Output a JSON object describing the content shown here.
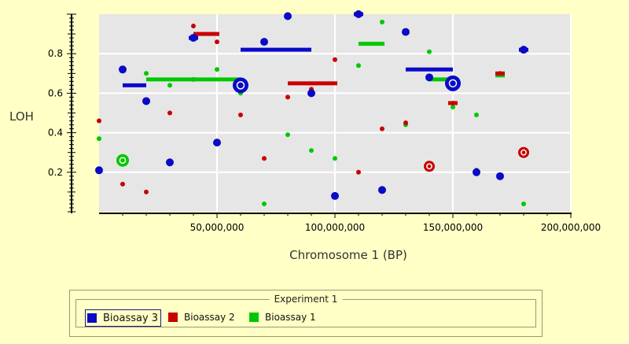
{
  "chart_data": {
    "type": "scatter",
    "xlabel": "Chromosome 1 (BP)",
    "ylabel": "LOH",
    "xlim": [
      0,
      200000000
    ],
    "ylim": [
      0,
      1.0
    ],
    "xticks": [
      50000000,
      100000000,
      150000000,
      200000000
    ],
    "xtick_labels": [
      "50,000,000",
      "100,000,000",
      "150,000,000",
      "200,000,000"
    ],
    "yticks": [
      0.2,
      0.4,
      0.6,
      0.8
    ],
    "ytick_labels": [
      "0.2",
      "0.4",
      "0.6",
      "0.8"
    ],
    "grid": true,
    "plot_background": "#e6e6e6",
    "series": [
      {
        "name": "Bioassay 3",
        "color": "#0a0ac8",
        "points": [
          [
            0,
            0.21
          ],
          [
            10000000,
            0.72
          ],
          [
            20000000,
            0.56
          ],
          [
            30000000,
            0.25
          ],
          [
            40000000,
            0.88
          ],
          [
            50000000,
            0.35
          ],
          [
            70000000,
            0.86
          ],
          [
            80000000,
            0.99
          ],
          [
            90000000,
            0.6
          ],
          [
            100000000,
            0.08
          ],
          [
            110000000,
            1.0
          ],
          [
            120000000,
            0.11
          ],
          [
            130000000,
            0.91
          ],
          [
            140000000,
            0.68
          ],
          [
            160000000,
            0.2
          ],
          [
            170000000,
            0.18
          ],
          [
            180000000,
            0.82
          ]
        ],
        "segments": [
          {
            "x": [
              10000000,
              20000000
            ],
            "y": 0.64
          },
          {
            "x": [
              60000000,
              90000000
            ],
            "y": 0.82
          },
          {
            "x": [
              130000000,
              150000000
            ],
            "y": 0.72
          },
          {
            "x": [
              38000000,
              42000000
            ],
            "y": 0.88
          },
          {
            "x": [
              108000000,
              112000000
            ],
            "y": 1.0
          },
          {
            "x": [
              178000000,
              182000000
            ],
            "y": 0.82
          }
        ],
        "highlights": [
          {
            "x": 60000000,
            "y": 0.64
          },
          {
            "x": 150000000,
            "y": 0.65
          }
        ]
      },
      {
        "name": "Bioassay 2",
        "color": "#c80000",
        "points": [
          [
            0,
            0.46
          ],
          [
            10000000,
            0.14
          ],
          [
            20000000,
            0.1
          ],
          [
            30000000,
            0.5
          ],
          [
            40000000,
            0.94
          ],
          [
            50000000,
            0.86
          ],
          [
            60000000,
            0.49
          ],
          [
            70000000,
            0.27
          ],
          [
            80000000,
            0.58
          ],
          [
            90000000,
            0.62
          ],
          [
            100000000,
            0.77
          ],
          [
            110000000,
            0.2
          ],
          [
            120000000,
            0.42
          ],
          [
            130000000,
            0.45
          ],
          [
            150000000,
            0.55
          ],
          [
            160000000,
            0.21
          ],
          [
            170000000,
            0.7
          ]
        ],
        "segments": [
          {
            "x": [
              40000000,
              51000000
            ],
            "y": 0.9
          },
          {
            "x": [
              80000000,
              101000000
            ],
            "y": 0.65
          },
          {
            "x": [
              148000000,
              152000000
            ],
            "y": 0.55
          },
          {
            "x": [
              168000000,
              172000000
            ],
            "y": 0.7
          }
        ],
        "highlights": [
          {
            "x": 140000000,
            "y": 0.23
          },
          {
            "x": 180000000,
            "y": 0.3
          }
        ]
      },
      {
        "name": "Bioassay 1",
        "color": "#00c800",
        "points": [
          [
            0,
            0.37
          ],
          [
            20000000,
            0.7
          ],
          [
            30000000,
            0.64
          ],
          [
            40000000,
            0.67
          ],
          [
            50000000,
            0.72
          ],
          [
            60000000,
            0.6
          ],
          [
            70000000,
            0.04
          ],
          [
            80000000,
            0.39
          ],
          [
            90000000,
            0.31
          ],
          [
            100000000,
            0.27
          ],
          [
            110000000,
            0.74
          ],
          [
            120000000,
            0.96
          ],
          [
            130000000,
            0.44
          ],
          [
            140000000,
            0.81
          ],
          [
            150000000,
            0.53
          ],
          [
            160000000,
            0.49
          ],
          [
            180000000,
            0.04
          ]
        ],
        "segments": [
          {
            "x": [
              20000000,
              60000000
            ],
            "y": 0.67
          },
          {
            "x": [
              110000000,
              121000000
            ],
            "y": 0.85
          },
          {
            "x": [
              140000000,
              150000000
            ],
            "y": 0.67
          },
          {
            "x": [
              168000000,
              172000000
            ],
            "y": 0.69
          }
        ],
        "highlights": [
          {
            "x": 10000000,
            "y": 0.26
          }
        ]
      }
    ]
  },
  "legend": {
    "title": "Experiment 1",
    "items": [
      {
        "label": "Bioassay 3",
        "color": "#0a0ac8",
        "selected": true
      },
      {
        "label": "Bioassay 2",
        "color": "#c80000",
        "selected": false
      },
      {
        "label": "Bioassay 1",
        "color": "#00c800",
        "selected": false
      }
    ]
  }
}
